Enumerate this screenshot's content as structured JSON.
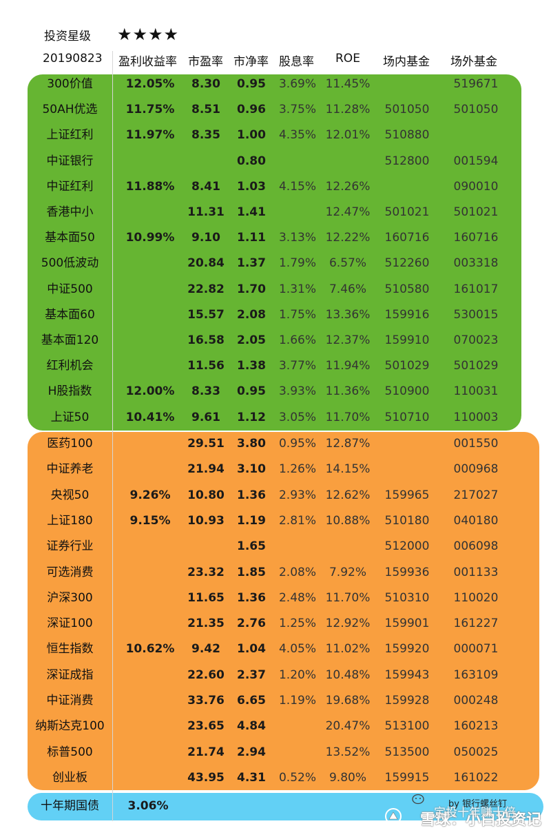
{
  "header": {
    "rating_label": "投资星级",
    "stars": "★★★★",
    "date": "20190823",
    "columns": [
      "盈利收益率",
      "市盈率",
      "市净率",
      "股息率",
      "ROE",
      "场内基金",
      "场外基金"
    ]
  },
  "colors": {
    "green": "#66b532",
    "orange": "#f99f3f",
    "blue": "#62d0f5"
  },
  "green_rows": [
    {
      "name": "300价值",
      "yield": "12.05%",
      "pe": "8.30",
      "pb": "0.95",
      "div": "3.69%",
      "roe": "11.45%",
      "infund": "",
      "outfund": "519671"
    },
    {
      "name": "50AH优选",
      "yield": "11.75%",
      "pe": "8.51",
      "pb": "0.96",
      "div": "3.75%",
      "roe": "11.28%",
      "infund": "501050",
      "outfund": "501050"
    },
    {
      "name": "上证红利",
      "yield": "11.97%",
      "pe": "8.35",
      "pb": "1.00",
      "div": "4.35%",
      "roe": "12.01%",
      "infund": "510880",
      "outfund": ""
    },
    {
      "name": "中证银行",
      "yield": "",
      "pe": "",
      "pb": "0.80",
      "div": "",
      "roe": "",
      "infund": "512800",
      "outfund": "001594"
    },
    {
      "name": "中证红利",
      "yield": "11.88%",
      "pe": "8.41",
      "pb": "1.03",
      "div": "4.15%",
      "roe": "12.26%",
      "infund": "",
      "outfund": "090010"
    },
    {
      "name": "香港中小",
      "yield": "",
      "pe": "11.31",
      "pb": "1.41",
      "div": "",
      "roe": "12.47%",
      "infund": "501021",
      "outfund": "501021"
    },
    {
      "name": "基本面50",
      "yield": "10.99%",
      "pe": "9.10",
      "pb": "1.11",
      "div": "3.13%",
      "roe": "12.22%",
      "infund": "160716",
      "outfund": "160716"
    },
    {
      "name": "500低波动",
      "yield": "",
      "pe": "20.84",
      "pb": "1.37",
      "div": "1.79%",
      "roe": "6.57%",
      "infund": "512260",
      "outfund": "003318"
    },
    {
      "name": "中证500",
      "yield": "",
      "pe": "22.82",
      "pb": "1.70",
      "div": "1.31%",
      "roe": "7.46%",
      "infund": "510580",
      "outfund": "161017"
    },
    {
      "name": "基本面60",
      "yield": "",
      "pe": "15.57",
      "pb": "2.08",
      "div": "1.75%",
      "roe": "13.36%",
      "infund": "159916",
      "outfund": "530015"
    },
    {
      "name": "基本面120",
      "yield": "",
      "pe": "16.58",
      "pb": "2.05",
      "div": "1.66%",
      "roe": "12.37%",
      "infund": "159910",
      "outfund": "070023"
    },
    {
      "name": "红利机会",
      "yield": "",
      "pe": "11.56",
      "pb": "1.38",
      "div": "3.77%",
      "roe": "11.94%",
      "infund": "501029",
      "outfund": "501029"
    },
    {
      "name": "H股指数",
      "yield": "12.00%",
      "pe": "8.33",
      "pb": "0.95",
      "div": "3.93%",
      "roe": "11.36%",
      "infund": "510900",
      "outfund": "110031"
    },
    {
      "name": "上证50",
      "yield": "10.41%",
      "pe": "9.61",
      "pb": "1.12",
      "div": "3.05%",
      "roe": "11.70%",
      "infund": "510710",
      "outfund": "110003"
    }
  ],
  "orange_rows": [
    {
      "name": "医药100",
      "yield": "",
      "pe": "29.51",
      "pb": "3.80",
      "div": "0.95%",
      "roe": "12.87%",
      "infund": "",
      "outfund": "001550"
    },
    {
      "name": "中证养老",
      "yield": "",
      "pe": "21.94",
      "pb": "3.10",
      "div": "1.26%",
      "roe": "14.15%",
      "infund": "",
      "outfund": "000968"
    },
    {
      "name": "央视50",
      "yield": "9.26%",
      "pe": "10.80",
      "pb": "1.36",
      "div": "2.93%",
      "roe": "12.62%",
      "infund": "159965",
      "outfund": "217027"
    },
    {
      "name": "上证180",
      "yield": "9.15%",
      "pe": "10.93",
      "pb": "1.19",
      "div": "2.81%",
      "roe": "10.88%",
      "infund": "510180",
      "outfund": "040180"
    },
    {
      "name": "证券行业",
      "yield": "",
      "pe": "",
      "pb": "1.65",
      "div": "",
      "roe": "",
      "infund": "512000",
      "outfund": "006098"
    },
    {
      "name": "可选消费",
      "yield": "",
      "pe": "23.32",
      "pb": "1.85",
      "div": "2.08%",
      "roe": "7.92%",
      "infund": "159936",
      "outfund": "001133"
    },
    {
      "name": "沪深300",
      "yield": "",
      "pe": "11.65",
      "pb": "1.36",
      "div": "2.48%",
      "roe": "11.70%",
      "infund": "510310",
      "outfund": "110020"
    },
    {
      "name": "深证100",
      "yield": "",
      "pe": "21.35",
      "pb": "2.76",
      "div": "1.25%",
      "roe": "12.92%",
      "infund": "159901",
      "outfund": "161227"
    },
    {
      "name": "恒生指数",
      "yield": "10.62%",
      "pe": "9.42",
      "pb": "1.04",
      "div": "4.05%",
      "roe": "11.02%",
      "infund": "159920",
      "outfund": "000071"
    },
    {
      "name": "深证成指",
      "yield": "",
      "pe": "22.60",
      "pb": "2.37",
      "div": "1.20%",
      "roe": "10.48%",
      "infund": "159943",
      "outfund": "163109"
    },
    {
      "name": "中证消费",
      "yield": "",
      "pe": "33.76",
      "pb": "6.65",
      "div": "1.19%",
      "roe": "19.68%",
      "infund": "159928",
      "outfund": "000248"
    },
    {
      "name": "纳斯达克100",
      "yield": "",
      "pe": "23.65",
      "pb": "4.84",
      "div": "",
      "roe": "20.47%",
      "infund": "513100",
      "outfund": "160213"
    },
    {
      "name": "标普500",
      "yield": "",
      "pe": "21.74",
      "pb": "2.94",
      "div": "",
      "roe": "13.52%",
      "infund": "513500",
      "outfund": "050025"
    },
    {
      "name": "创业板",
      "yield": "",
      "pe": "43.95",
      "pb": "4.31",
      "div": "0.52%",
      "roe": "9.80%",
      "infund": "159915",
      "outfund": "161022"
    }
  ],
  "bond_row": {
    "name": "十年期国债",
    "yield": "3.06%"
  },
  "credit": "by 银行螺丝钉",
  "watermark": "雪球：小白投资记",
  "watermark_overlay": "定投十年赚十倍"
}
